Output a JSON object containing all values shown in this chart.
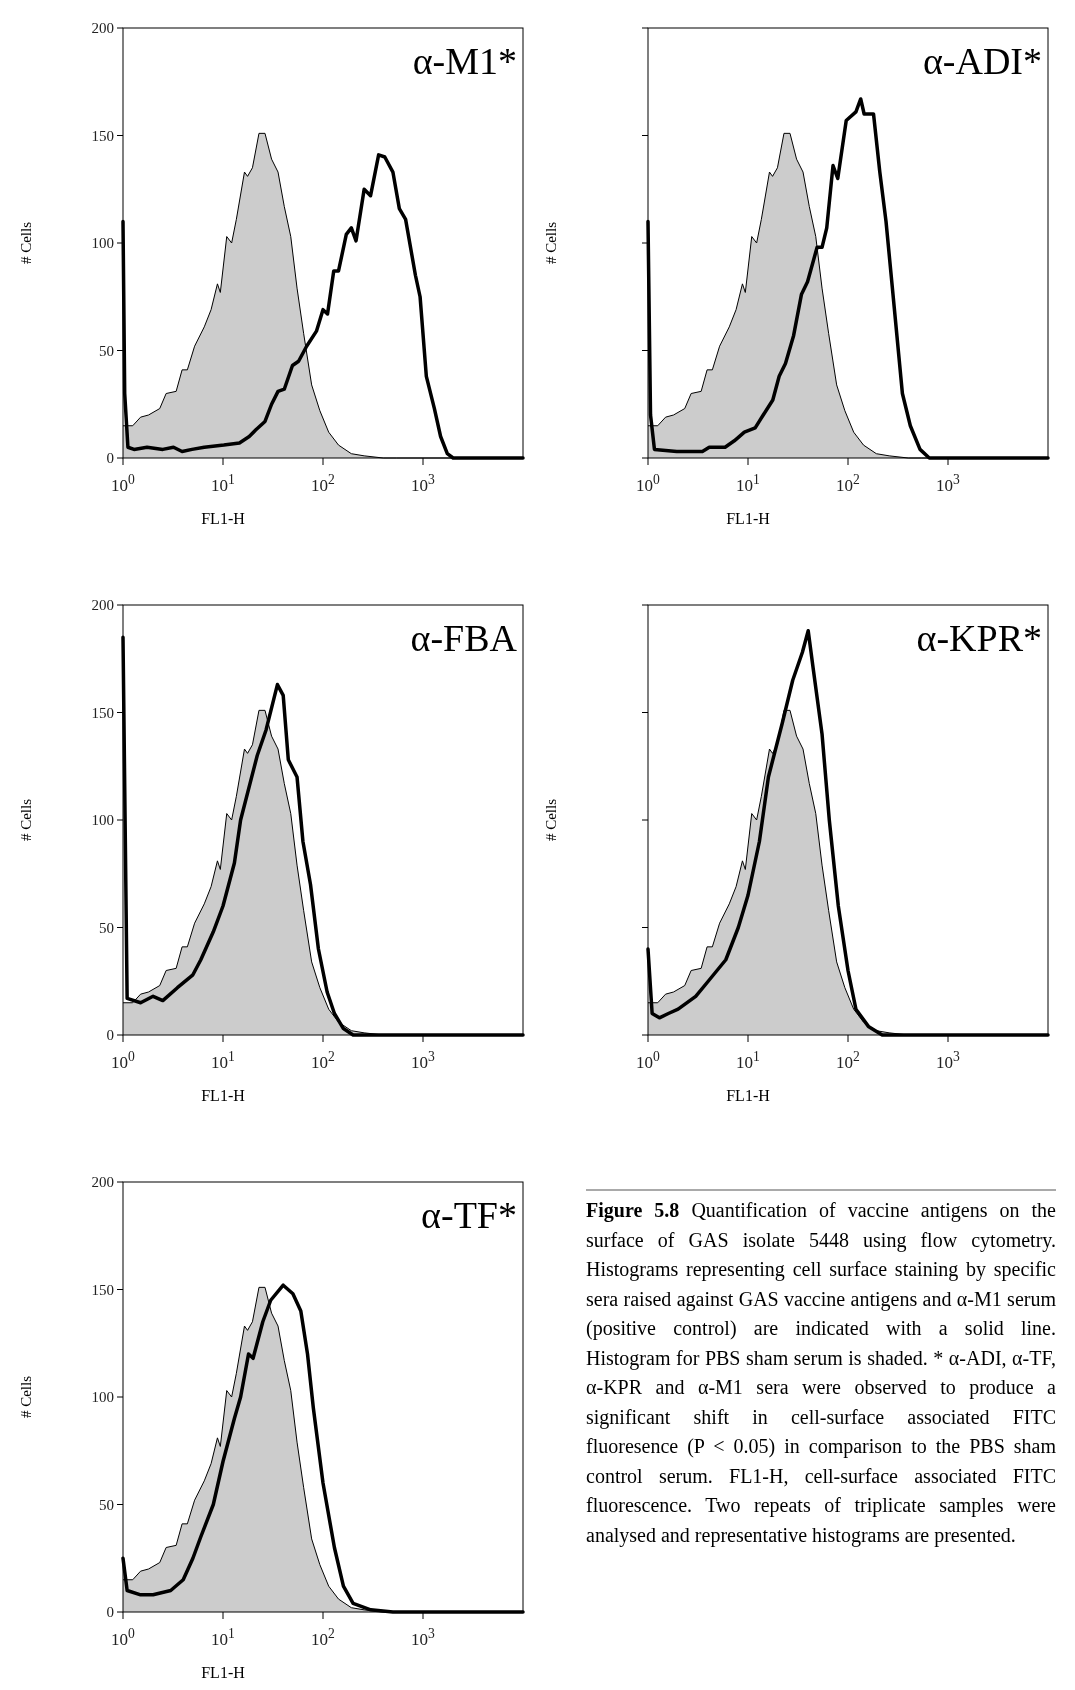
{
  "chart_data": [
    {
      "type": "line",
      "title": "α-M1*",
      "xlabel": "FL1-H",
      "ylabel": "# Cells",
      "log": "x",
      "xlim": [
        1,
        10000
      ],
      "xticks": [
        {
          "value": 1,
          "label": "10$^{0}$"
        },
        {
          "value": 10,
          "label": "10$^{1}$"
        },
        {
          "value": 100,
          "label": "10$^{2}$"
        },
        {
          "value": 1000,
          "label": "10$^{3}$"
        }
      ],
      "ylim": [
        0,
        200
      ],
      "yticks": [
        0,
        50,
        100,
        150,
        200
      ],
      "series": [
        {
          "type": "area",
          "color": "#cccccc",
          "x": [
            1,
            1.25,
            1.5,
            1.8,
            2.33,
            2.7,
            3.4,
            3.9,
            4.4,
            5.2,
            6.5,
            7.6,
            8.8,
            9.4,
            10.9,
            12.2,
            13.6,
            16.4,
            17.6,
            19.7,
            22.9,
            26.3,
            30.6,
            35.5,
            41,
            47.6,
            55,
            64,
            77,
            93,
            114,
            143,
            192,
            258,
            400,
            540,
            10000
          ],
          "values": [
            15,
            15,
            19,
            20,
            23,
            30,
            31,
            41,
            41,
            52,
            61,
            69,
            81,
            77,
            103,
            100,
            111,
            133,
            131,
            135,
            151,
            151,
            139,
            133,
            117,
            103,
            79,
            58,
            34,
            22,
            12,
            6,
            2,
            1,
            0,
            0,
            0
          ]
        },
        {
          "type": "line",
          "color": "#000000",
          "x": [
            1,
            1.04,
            1.12,
            1.29,
            1.74,
            2.5,
            3.2,
            3.9,
            4.9,
            6.5,
            10.2,
            14.6,
            18.3,
            21.2,
            26.3,
            30.6,
            35.5,
            41,
            49.5,
            57,
            68.6,
            86,
            100,
            111,
            128,
            143,
            171,
            192,
            214,
            258,
            299,
            360,
            415,
            500,
            580,
            670,
            840,
            935,
            1080,
            1300,
            1500,
            1750,
            2000,
            10000
          ],
          "values": [
            110,
            30,
            5,
            4,
            5,
            4,
            5,
            3,
            4,
            5,
            6,
            7,
            10,
            13,
            17,
            25,
            31,
            32,
            43,
            45,
            52,
            59,
            69,
            67,
            87,
            87,
            104,
            107,
            101,
            125,
            122,
            141,
            140,
            133,
            116,
            111,
            85,
            75,
            38,
            23,
            10,
            2,
            0,
            0
          ]
        }
      ]
    },
    {
      "type": "line",
      "title": "α-ADI*",
      "xlabel": "FL1-H",
      "ylabel": "# Cells",
      "log": "x",
      "xlim": [
        1,
        10000
      ],
      "xticks": [
        {
          "value": 1,
          "label": "10$^{0}$"
        },
        {
          "value": 10,
          "label": "10$^{1}$"
        },
        {
          "value": 100,
          "label": "10$^{2}$"
        },
        {
          "value": 1000,
          "label": "10$^{3}$"
        }
      ],
      "ylim": [
        0,
        200
      ],
      "yticks": [
        0,
        50,
        100,
        150,
        200
      ],
      "tick_labels": "x",
      "series": [
        {
          "type": "area",
          "color": "#cccccc",
          "x": [
            1,
            1.25,
            1.5,
            1.8,
            2.33,
            2.7,
            3.4,
            3.9,
            4.4,
            5.2,
            6.5,
            7.6,
            8.8,
            9.4,
            10.9,
            12.2,
            13.6,
            16.4,
            17.6,
            19.7,
            22.9,
            26.3,
            30.6,
            35.5,
            41,
            47.6,
            55,
            64,
            77,
            93,
            114,
            143,
            192,
            258,
            400,
            540,
            10000
          ],
          "values": [
            15,
            15,
            19,
            20,
            23,
            30,
            31,
            41,
            41,
            52,
            61,
            69,
            81,
            77,
            103,
            100,
            111,
            133,
            131,
            135,
            151,
            151,
            139,
            133,
            117,
            103,
            79,
            58,
            34,
            22,
            12,
            6,
            2,
            1,
            0,
            0,
            0
          ]
        },
        {
          "type": "line",
          "color": "#000000",
          "x": [
            1,
            1.06,
            1.16,
            1.94,
            3.5,
            4.1,
            5.9,
            7.3,
            9.2,
            11.8,
            14.2,
            17.7,
            20.5,
            23.7,
            28.6,
            34.2,
            39.4,
            49.1,
            55,
            61.3,
            70.8,
            79,
            96,
            120,
            134,
            145,
            180,
            208,
            240,
            290,
            350,
            420,
            525,
            650,
            10000
          ],
          "values": [
            110,
            20,
            4,
            3,
            3,
            5,
            5,
            8,
            12,
            14,
            20,
            27,
            38,
            44,
            57,
            76,
            82,
            98,
            98,
            107,
            136,
            130,
            157,
            161,
            167,
            160,
            160,
            133,
            110,
            70,
            30,
            15,
            4,
            0,
            0
          ]
        }
      ]
    },
    {
      "type": "line",
      "title": "α-FBA",
      "xlabel": "FL1-H",
      "ylabel": "# Cells",
      "log": "x",
      "xlim": [
        1,
        10000
      ],
      "xticks": [
        {
          "value": 1,
          "label": "10$^{0}$"
        },
        {
          "value": 10,
          "label": "10$^{1}$"
        },
        {
          "value": 100,
          "label": "10$^{2}$"
        },
        {
          "value": 1000,
          "label": "10$^{3}$"
        }
      ],
      "ylim": [
        0,
        200
      ],
      "yticks": [
        0,
        50,
        100,
        150,
        200
      ],
      "series": [
        {
          "type": "area",
          "color": "#cccccc",
          "x": [
            1,
            1.25,
            1.5,
            1.8,
            2.33,
            2.7,
            3.4,
            3.9,
            4.4,
            5.2,
            6.5,
            7.6,
            8.8,
            9.4,
            10.9,
            12.2,
            13.6,
            16.4,
            17.6,
            19.7,
            22.9,
            26.3,
            30.6,
            35.5,
            41,
            47.6,
            55,
            64,
            77,
            93,
            114,
            143,
            192,
            258,
            400,
            540,
            10000
          ],
          "values": [
            15,
            15,
            19,
            20,
            23,
            30,
            31,
            41,
            41,
            52,
            61,
            69,
            81,
            77,
            103,
            100,
            111,
            133,
            131,
            135,
            151,
            151,
            139,
            133,
            117,
            103,
            79,
            58,
            34,
            22,
            12,
            6,
            2,
            1,
            0,
            0,
            0
          ]
        },
        {
          "type": "line",
          "color": "#000000",
          "x": [
            1,
            1.1,
            1.5,
            2,
            2.5,
            3.5,
            5,
            6,
            8,
            10,
            13,
            15,
            22,
            27,
            35,
            40,
            45,
            55,
            63,
            75,
            90,
            110,
            130,
            160,
            200,
            10000
          ],
          "values": [
            185,
            17,
            15,
            18,
            16,
            22,
            28,
            35,
            48,
            60,
            80,
            100,
            130,
            142,
            163,
            158,
            128,
            120,
            90,
            70,
            40,
            20,
            10,
            3,
            0,
            0
          ]
        }
      ]
    },
    {
      "type": "line",
      "title": "α-KPR*",
      "xlabel": "FL1-H",
      "ylabel": "# Cells",
      "log": "x",
      "xlim": [
        1,
        10000
      ],
      "xticks": [
        {
          "value": 1,
          "label": "10$^{0}$"
        },
        {
          "value": 10,
          "label": "10$^{1}$"
        },
        {
          "value": 100,
          "label": "10$^{2}$"
        },
        {
          "value": 1000,
          "label": "10$^{3}$"
        }
      ],
      "ylim": [
        0,
        200
      ],
      "yticks": [
        0,
        50,
        100,
        150,
        200
      ],
      "tick_labels": "x",
      "series": [
        {
          "type": "area",
          "color": "#cccccc",
          "x": [
            1,
            1.25,
            1.5,
            1.8,
            2.33,
            2.7,
            3.4,
            3.9,
            4.4,
            5.2,
            6.5,
            7.6,
            8.8,
            9.4,
            10.9,
            12.2,
            13.6,
            16.4,
            17.6,
            19.7,
            22.9,
            26.3,
            30.6,
            35.5,
            41,
            47.6,
            55,
            64,
            77,
            93,
            114,
            143,
            192,
            258,
            400,
            540,
            10000
          ],
          "values": [
            15,
            15,
            19,
            20,
            23,
            30,
            31,
            41,
            41,
            52,
            61,
            69,
            81,
            77,
            103,
            100,
            111,
            133,
            131,
            135,
            151,
            151,
            139,
            133,
            117,
            103,
            79,
            58,
            34,
            22,
            12,
            6,
            2,
            1,
            0,
            0,
            0
          ]
        },
        {
          "type": "line",
          "color": "#000000",
          "x": [
            1,
            1.1,
            1.3,
            1.6,
            2,
            3,
            4,
            6,
            8,
            10,
            13,
            16,
            22,
            28,
            35,
            40,
            45,
            55,
            65,
            80,
            100,
            120,
            160,
            220,
            10000
          ],
          "values": [
            40,
            10,
            8,
            10,
            12,
            18,
            25,
            35,
            50,
            65,
            90,
            120,
            145,
            165,
            178,
            188,
            170,
            140,
            100,
            60,
            30,
            12,
            4,
            0,
            0
          ]
        }
      ]
    },
    {
      "type": "line",
      "title": "α-TF*",
      "xlabel": "FL1-H",
      "ylabel": "# Cells",
      "log": "x",
      "xlim": [
        1,
        10000
      ],
      "xticks": [
        {
          "value": 1,
          "label": "10$^{0}$"
        },
        {
          "value": 10,
          "label": "10$^{1}$"
        },
        {
          "value": 100,
          "label": "10$^{2}$"
        },
        {
          "value": 1000,
          "label": "10$^{3}$"
        }
      ],
      "ylim": [
        0,
        200
      ],
      "yticks": [
        0,
        50,
        100,
        150,
        200
      ],
      "series": [
        {
          "type": "area",
          "color": "#cccccc",
          "x": [
            1,
            1.25,
            1.5,
            1.8,
            2.33,
            2.7,
            3.4,
            3.9,
            4.4,
            5.2,
            6.5,
            7.6,
            8.8,
            9.4,
            10.9,
            12.2,
            13.6,
            16.4,
            17.6,
            19.7,
            22.9,
            26.3,
            30.6,
            35.5,
            41,
            47.6,
            55,
            64,
            77,
            93,
            114,
            143,
            192,
            258,
            400,
            540,
            10000
          ],
          "values": [
            15,
            15,
            19,
            20,
            23,
            30,
            31,
            41,
            41,
            52,
            61,
            69,
            81,
            77,
            103,
            100,
            111,
            133,
            131,
            135,
            151,
            151,
            139,
            133,
            117,
            103,
            79,
            58,
            34,
            22,
            12,
            6,
            2,
            1,
            0,
            0,
            0
          ]
        },
        {
          "type": "line",
          "color": "#000000",
          "x": [
            1,
            1.1,
            1.5,
            2,
            3,
            4,
            5,
            6,
            8,
            10,
            13,
            15,
            18,
            20,
            25,
            30,
            40,
            50,
            60,
            70,
            80,
            100,
            130,
            160,
            200,
            300,
            500,
            10000
          ],
          "values": [
            25,
            10,
            8,
            8,
            10,
            15,
            25,
            35,
            50,
            70,
            90,
            100,
            120,
            118,
            135,
            145,
            152,
            148,
            140,
            120,
            95,
            60,
            30,
            12,
            4,
            1,
            0,
            0
          ]
        }
      ]
    },
    {
      "type": "other",
      "annotations": [
        "Figure 5.8",
        "Quantification of vaccine antigens on the surface of GAS isolate 5448 using flow cytometry. Histograms representing cell surface staining by specific sera raised against GAS vaccine antigens and α-M1 serum (positive control) are indicated with a solid line. Histogram for PBS sham serum is shaded. * α-ADI, α-TF, α-KPR and α-M1 sera were observed to produce a significant shift in cell-surface associated FITC fluoresence (P < 0.05) in comparison to the PBS sham control serum. FL1-H, cell-surface associated FITC fluorescence. Two repeats of triplicate samples were analysed and representative histograms are presented."
      ]
    }
  ]
}
